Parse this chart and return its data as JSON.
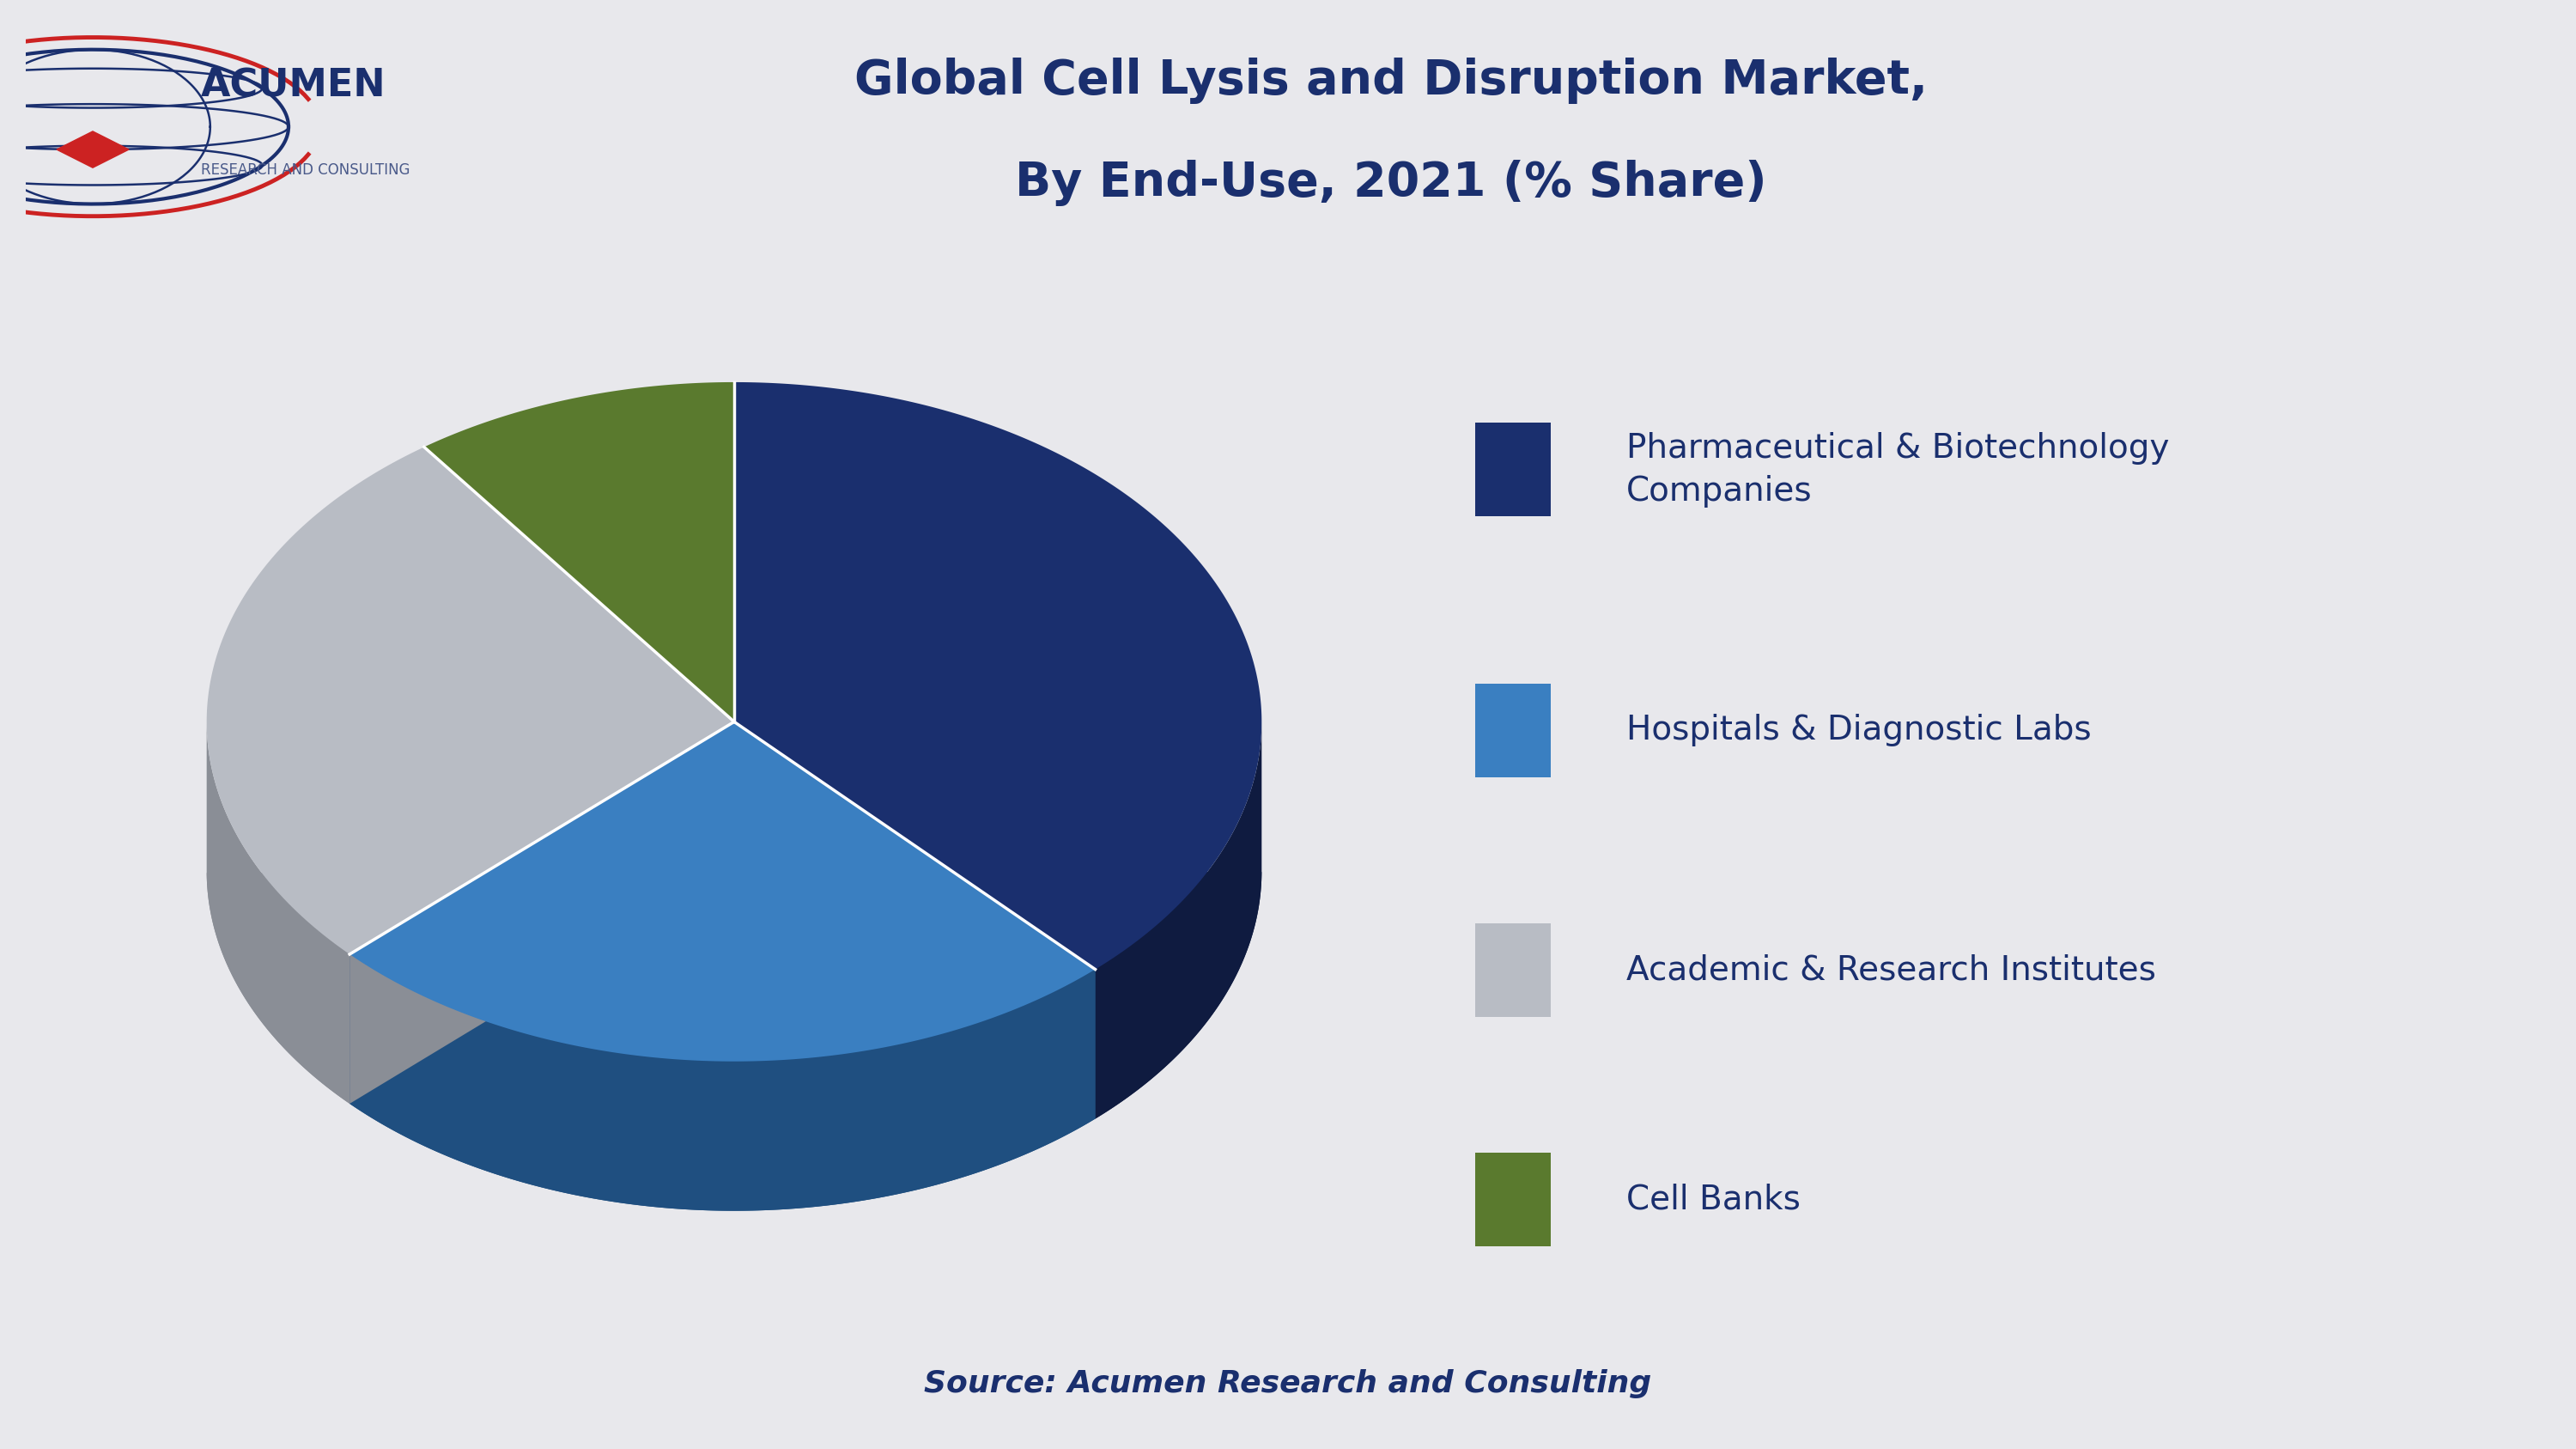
{
  "title_line1": "Global Cell Lysis and Disruption Market,",
  "title_line2": "By End-Use, 2021 (% Share)",
  "title_color": "#1a2f6e",
  "title_fontsize": 40,
  "background_color": "#e8e8ec",
  "header_bg_color": "#ebebef",
  "source_text": "Source: Acumen Research and Consulting",
  "source_fontsize": 26,
  "segments": [
    {
      "label": "Pharmaceutical & Biotechnology\nCompanies",
      "value": 38,
      "color": "#1a2f6e",
      "dark_color": "#0f1b40"
    },
    {
      "label": "Hospitals & Diagnostic Labs",
      "value": 25,
      "color": "#3a7fc1",
      "dark_color": "#1f4f80"
    },
    {
      "label": "Academic & Research Institutes",
      "value": 27,
      "color": "#b8bcc4",
      "dark_color": "#8a8e96"
    },
    {
      "label": "Cell Banks",
      "value": 10,
      "color": "#5a7a2e",
      "dark_color": "#3a5018"
    }
  ],
  "legend_fontsize": 28,
  "legend_color": "#1a2f6e",
  "separator_color": "#1a2f6e"
}
